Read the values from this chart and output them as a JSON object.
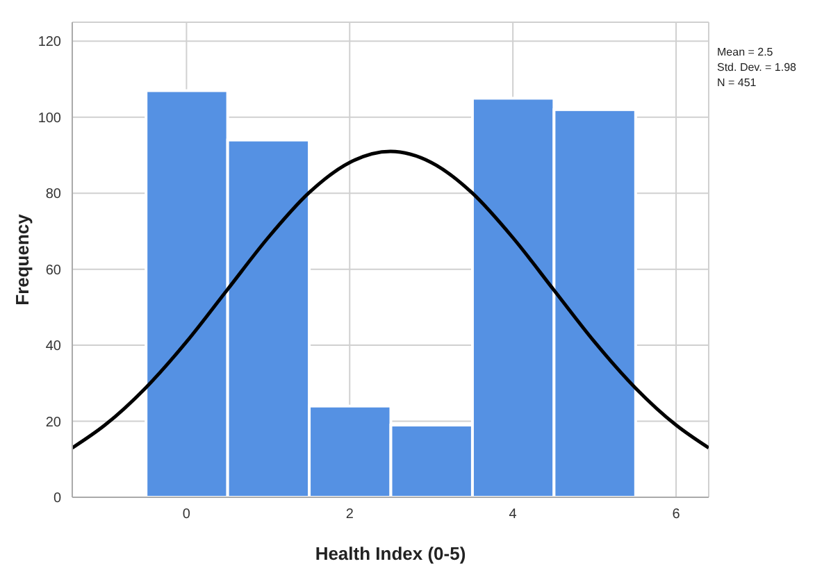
{
  "chart_data": {
    "type": "histogram",
    "xlabel": "Health Index (0-5)",
    "ylabel": "Frequency",
    "bins": [
      -0.5,
      0.5,
      1.5,
      2.5,
      3.5,
      4.5,
      5.5
    ],
    "values": [
      107,
      94,
      24,
      19,
      105,
      102
    ],
    "color": "#5591e3",
    "series": [
      {
        "type": "line",
        "color": "#000000",
        "x": [
          -1.4,
          -1,
          -0.5,
          0,
          0.5,
          1,
          1.5,
          2,
          2.5,
          3,
          3.5,
          4,
          4.5,
          5,
          5.5,
          6,
          6.4
        ],
        "values": [
          13,
          19,
          28.8,
          40.9,
          54.6,
          68.3,
          80.1,
          88.1,
          91,
          88.1,
          80.1,
          68.3,
          54.6,
          40.9,
          28.8,
          19,
          13
        ]
      }
    ],
    "xlim": [
      -1.4,
      6.4
    ],
    "xticks": [
      0,
      2,
      4,
      6
    ],
    "ylim": [
      0,
      125
    ],
    "yticks": [
      0,
      20,
      40,
      60,
      80,
      100,
      120
    ],
    "grid": true,
    "annotations": [
      "Mean = 2.5",
      "Std. Dev. = 1.98",
      "N = 451"
    ]
  }
}
